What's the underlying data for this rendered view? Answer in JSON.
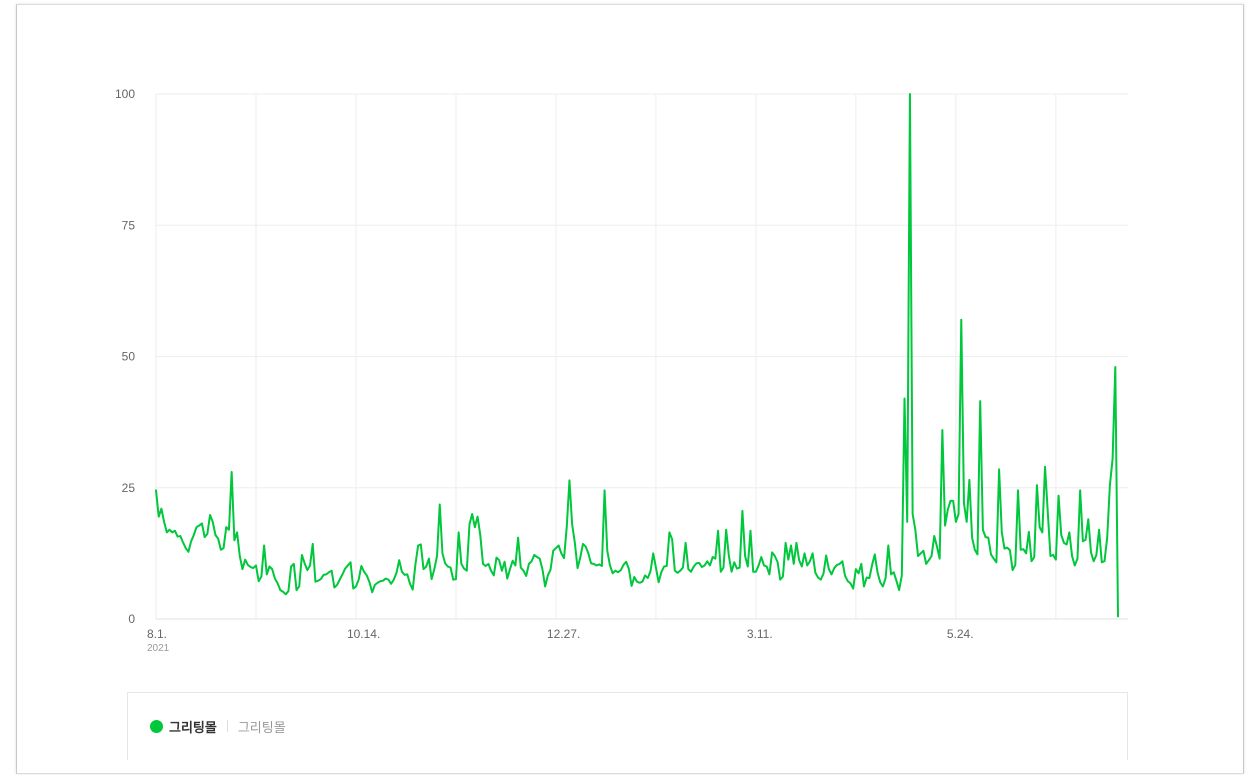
{
  "chart_data": {
    "type": "line",
    "title": "",
    "xlabel": "",
    "ylabel": "",
    "ylim": [
      0,
      100
    ],
    "y_ticks": [
      "0",
      "25",
      "50",
      "75",
      "100"
    ],
    "x_ticks": [
      {
        "label": "8.1.",
        "sublabel": "2021",
        "index": 0
      },
      {
        "label": "10.14.",
        "index": 74
      },
      {
        "label": "12.27.",
        "index": 148
      },
      {
        "label": "3.11.",
        "index": 222
      },
      {
        "label": "5.24.",
        "index": 296
      }
    ],
    "grid": true,
    "legend_position": "bottom",
    "series": [
      {
        "name": "그리팅몰",
        "color": "#00c73c",
        "values": [
          24.5,
          19.5,
          21,
          18.5,
          16.5,
          17,
          16.5,
          16.8,
          15.7,
          15.8,
          14.6,
          13.5,
          12.8,
          14.8,
          16,
          17.5,
          17.8,
          18.2,
          15.6,
          16.2,
          19.8,
          18.5,
          16,
          15.3,
          13.2,
          13.5,
          17.5,
          17,
          28,
          15,
          16.5,
          12,
          9.5,
          11.3,
          10.3,
          9.9,
          9.7,
          10.2,
          7.2,
          8.1,
          14,
          8.5,
          10,
          9.5,
          7.7,
          6.8,
          5.5,
          5.2,
          4.7,
          5.3,
          10,
          10.5,
          5.5,
          6.2,
          12.2,
          10.6,
          9.3,
          10.2,
          14.3,
          7.1,
          7.3,
          7.6,
          8.4,
          8.5,
          8.9,
          9.2,
          6,
          6.5,
          7.5,
          8.5,
          9.6,
          10.2,
          10.8,
          5.8,
          6.2,
          7.5,
          10.1,
          9,
          8.3,
          7,
          5.1,
          6.5,
          6.9,
          7.2,
          7.3,
          7.7,
          7.5,
          6.7,
          7.5,
          8.8,
          11.2,
          9,
          8.4,
          8.5,
          6.7,
          5.6,
          10.4,
          14,
          14.2,
          9.5,
          10,
          11.5,
          7.6,
          9.5,
          12,
          21.8,
          12.5,
          10.6,
          10,
          9.8,
          7.5,
          7.6,
          16.5,
          10.5,
          9.6,
          9.2,
          18,
          20,
          17.5,
          19.5,
          16,
          10.5,
          10.1,
          10.5,
          9.2,
          8.3,
          11.7,
          11.2,
          9.2,
          10.9,
          7.7,
          9.5,
          11.1,
          10.2,
          15.5,
          9.8,
          9.2,
          8.2,
          10.5,
          11,
          12.2,
          11.8,
          11.5,
          9.5,
          6.2,
          8.3,
          9.4,
          13,
          13.5,
          14,
          12.5,
          11.6,
          17.5,
          26.4,
          18,
          14.5,
          9.7,
          11.7,
          14.3,
          13.8,
          12.5,
          10.6,
          10.5,
          10.2,
          10.4,
          10.1,
          24.5,
          13,
          10.2,
          8.7,
          9.2,
          8.9,
          9.3,
          10.3,
          10.9,
          9.5,
          6.3,
          8,
          7.1,
          6.9,
          7.1,
          8.3,
          7.8,
          9.1,
          12.5,
          9.8,
          7,
          8.9,
          10,
          10.1,
          16.5,
          15.2,
          9.2,
          8.8,
          9.2,
          9.8,
          14.5,
          9.5,
          9,
          10,
          10.6,
          10.7,
          9.9,
          10.2,
          11,
          10.2,
          11.8,
          11.5,
          16.8,
          9,
          9.8,
          17,
          12,
          9,
          10.8,
          9.6,
          9.8,
          20.6,
          12,
          10,
          16.8,
          9,
          9,
          10.2,
          11.8,
          10.2,
          10,
          8.5,
          12.7,
          12,
          10.9,
          7.5,
          8.1,
          14.5,
          11.3,
          14,
          10.5,
          14.5,
          11.2,
          10,
          12.5,
          10.2,
          11,
          12.5,
          8.8,
          7.9,
          7.5,
          8.6,
          12.1,
          9.5,
          8.5,
          9.7,
          10.3,
          10.5,
          11,
          8.2,
          7.2,
          6.8,
          5.8,
          9.5,
          8.7,
          10.5,
          6.2,
          7.9,
          7.8,
          10.3,
          12.3,
          8.9,
          7,
          6.2,
          7.8,
          14,
          8.5,
          8.9,
          7.3,
          5.5,
          8.3,
          42,
          18.5,
          100,
          20,
          17,
          12,
          12.5,
          13,
          10.5,
          11.2,
          12,
          15.8,
          13.8,
          11.5,
          36,
          17.8,
          20.8,
          22.5,
          22.5,
          18.5,
          20,
          57,
          22,
          18.5,
          26.5,
          15.5,
          13.2,
          12.3,
          41.5,
          17,
          15.6,
          15.5,
          12.3,
          11.5,
          10.8,
          28.5,
          16.5,
          13.4,
          13.6,
          13.1,
          9.3,
          10.3,
          24.5,
          13.2,
          13.3,
          12.5,
          16.6,
          11,
          11.8,
          25.5,
          17.5,
          16.5,
          29,
          20.5,
          12,
          12.2,
          11.3,
          23.5,
          16,
          14.5,
          14.2,
          16.5,
          12,
          10.2,
          11.5,
          24.5,
          14.8,
          15.1,
          19,
          12.7,
          11,
          12.2,
          17,
          10.8,
          11,
          15.5,
          25.5,
          30.5,
          48,
          0.5
        ]
      }
    ]
  },
  "legend": {
    "series_name": "그리팅몰",
    "series_sub": "그리팅몰",
    "dot_color": "#00c73c"
  },
  "colors": {
    "line": "#00c73c",
    "grid": "#ececec",
    "axis_text": "#666666"
  }
}
